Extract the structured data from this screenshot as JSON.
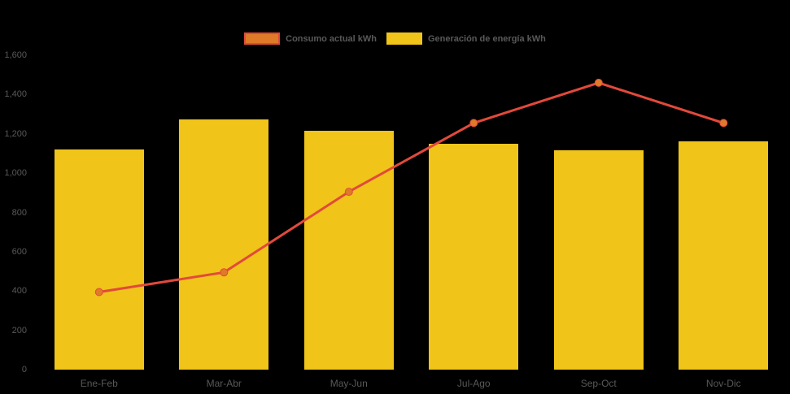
{
  "chart_data": {
    "type": "combo",
    "categories": [
      "Ene-Feb",
      "Mar-Abr",
      "May-Jun",
      "Jul-Ago",
      "Sep-Oct",
      "Nov-Dic"
    ],
    "series": [
      {
        "name": "Consumo actual kWh",
        "type": "line",
        "values": [
          395,
          495,
          905,
          1255,
          1460,
          1255
        ],
        "color": "#E2493B",
        "marker_color": "#DF7A28"
      },
      {
        "name": "Generación de energía kWh",
        "type": "bar",
        "values": [
          1120,
          1275,
          1215,
          1150,
          1115,
          1160
        ],
        "color": "#F0C419"
      }
    ],
    "ylim": [
      0,
      1600
    ],
    "yticks": [
      0,
      200,
      400,
      600,
      800,
      1000,
      1200,
      1400,
      1600
    ],
    "grid": false,
    "legend_position": "top",
    "background": "#000000",
    "axis_text_color": "#595959"
  }
}
